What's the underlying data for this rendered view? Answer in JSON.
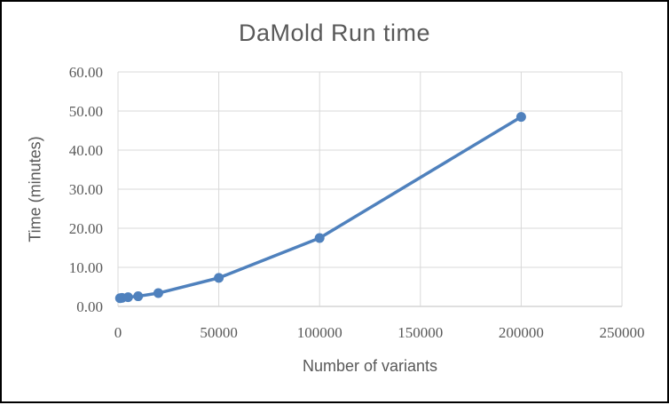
{
  "chart_data": {
    "type": "line",
    "title": "DaMold Run time",
    "xlabel": "Number of variants",
    "ylabel": "Time (minutes)",
    "x": [
      1000,
      2000,
      5000,
      10000,
      20000,
      50000,
      100000,
      200000
    ],
    "y": [
      2.1,
      2.2,
      2.35,
      2.6,
      3.4,
      7.3,
      17.5,
      48.5
    ],
    "xlim": [
      0,
      250000
    ],
    "ylim": [
      0,
      60
    ],
    "xticks": {
      "values": [
        0,
        50000,
        100000,
        150000,
        200000,
        250000
      ],
      "labels": [
        "0",
        "50000",
        "100000",
        "150000",
        "200000",
        "250000"
      ]
    },
    "yticks": {
      "values": [
        0,
        10,
        20,
        30,
        40,
        50,
        60
      ],
      "labels": [
        "0.00",
        "10.00",
        "20.00",
        "30.00",
        "40.00",
        "50.00",
        "60.00"
      ]
    },
    "grid": true,
    "legend": false,
    "colors": {
      "series": "#4f81bd",
      "marker": "#4f81bd",
      "grid": "#d9d9d9",
      "axis_line": "#bfbfbf",
      "text": "#595959",
      "frame_border": "#000000",
      "background": "#ffffff"
    }
  }
}
